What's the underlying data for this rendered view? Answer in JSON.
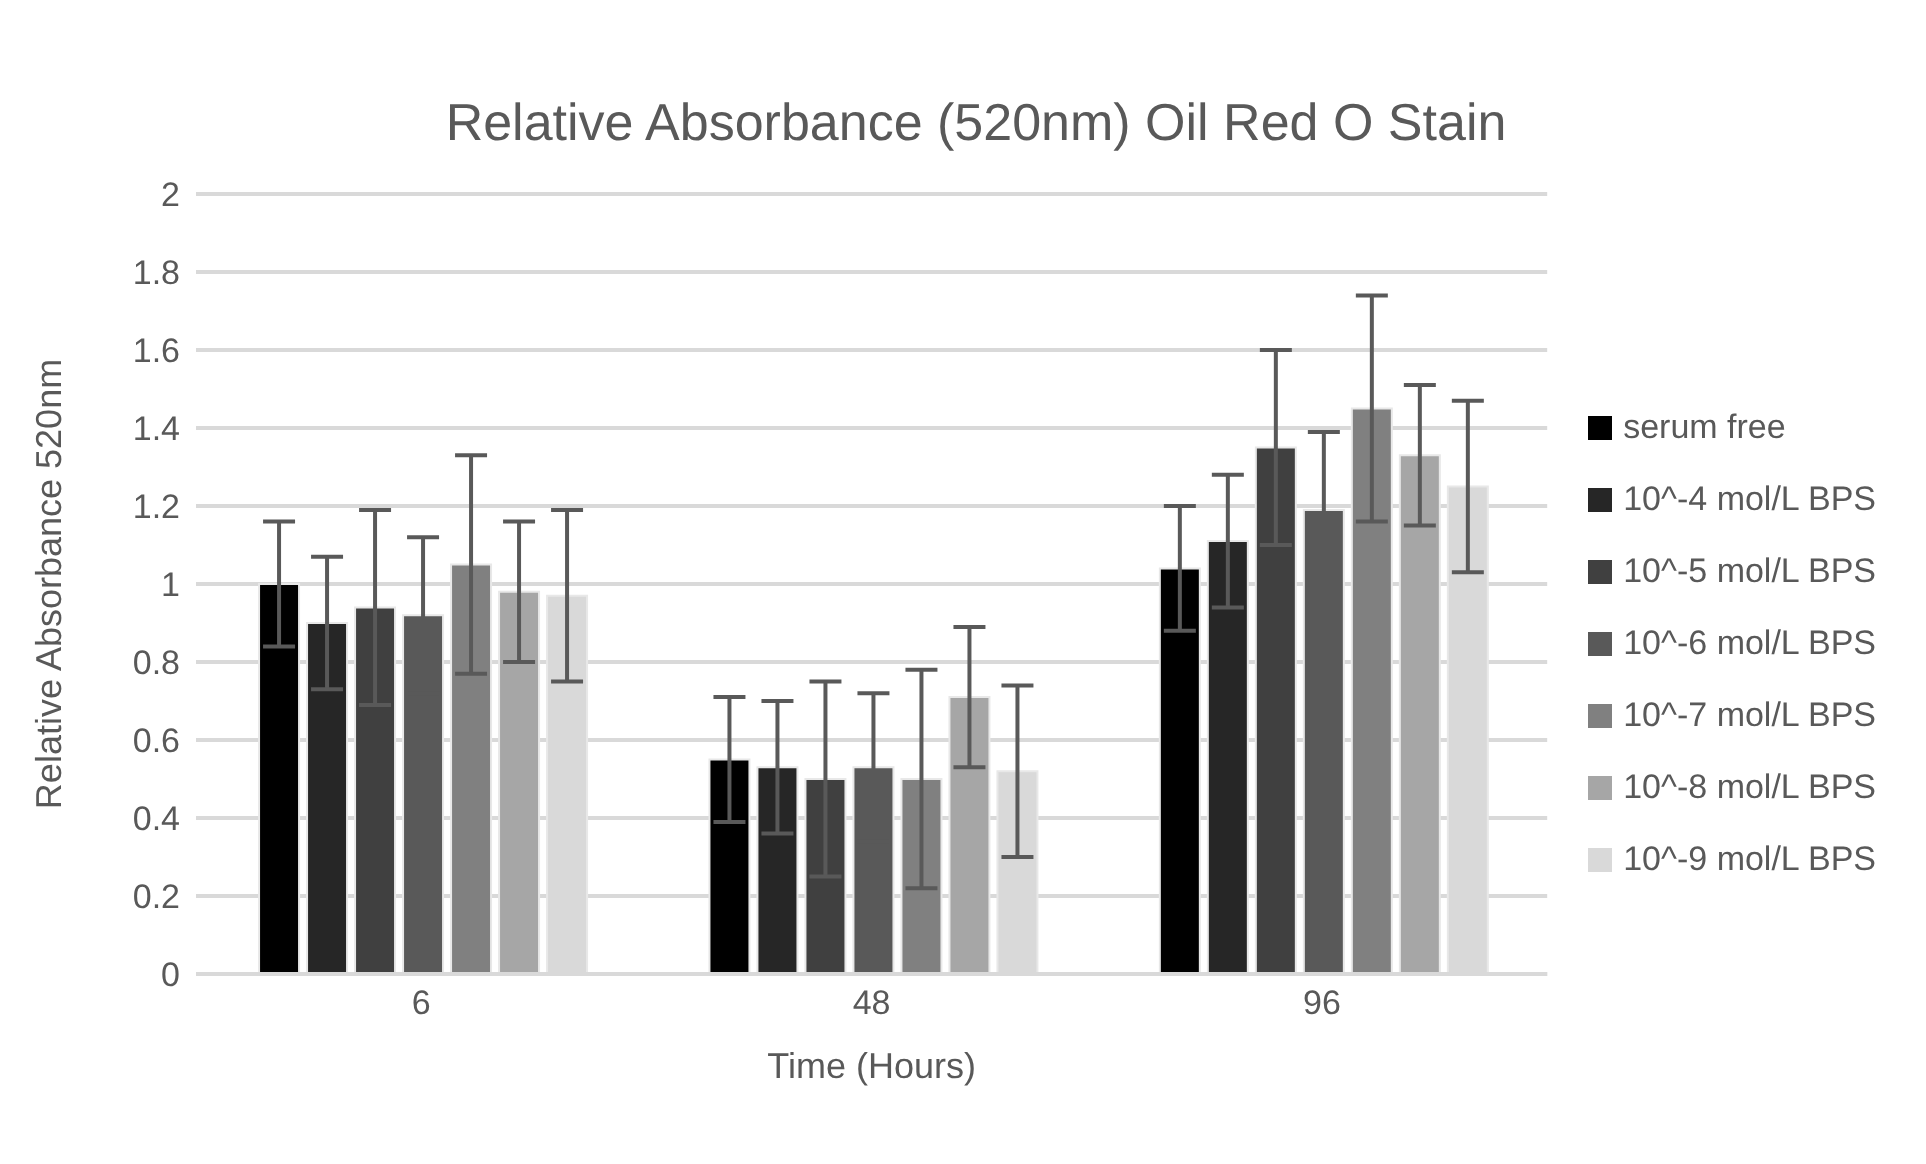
{
  "chart_data": {
    "type": "bar",
    "title": "Relative Absorbance (520nm) Oil Red O Stain",
    "xlabel": "Time (Hours)",
    "ylabel": "Relative Absorbance 520nm",
    "categories": [
      "6",
      "48",
      "96"
    ],
    "series": [
      {
        "name": "serum free",
        "color": "#000000",
        "values": [
          1.0,
          0.55,
          1.04
        ],
        "errors": [
          0.16,
          0.16,
          0.16
        ]
      },
      {
        "name": "10^-4 mol/L BPS",
        "color": "#262626",
        "values": [
          0.9,
          0.53,
          1.11
        ],
        "errors": [
          0.17,
          0.17,
          0.17
        ]
      },
      {
        "name": "10^-5 mol/L BPS",
        "color": "#404040",
        "values": [
          0.94,
          0.5,
          1.35
        ],
        "errors": [
          0.25,
          0.25,
          0.25
        ]
      },
      {
        "name": "10^-6 mol/L BPS",
        "color": "#595959",
        "values": [
          0.92,
          0.53,
          1.19
        ],
        "errors": [
          0.2,
          0.19,
          0.2
        ]
      },
      {
        "name": "10^-7 mol/L BPS",
        "color": "#808080",
        "values": [
          1.05,
          0.5,
          1.45
        ],
        "errors": [
          0.28,
          0.28,
          0.29
        ]
      },
      {
        "name": "10^-8 mol/L BPS",
        "color": "#a6a6a6",
        "values": [
          0.98,
          0.71,
          1.33
        ],
        "errors": [
          0.18,
          0.18,
          0.18
        ]
      },
      {
        "name": "10^-9 mol/L BPS",
        "color": "#d9d9d9",
        "values": [
          0.97,
          0.52,
          1.25
        ],
        "errors": [
          0.22,
          0.22,
          0.22
        ]
      }
    ],
    "ylim": [
      0,
      2
    ],
    "yticks": [
      0,
      0.2,
      0.4,
      0.6,
      0.8,
      1,
      1.2,
      1.4,
      1.6,
      1.8,
      2
    ],
    "grid": "y",
    "legend": "right"
  }
}
